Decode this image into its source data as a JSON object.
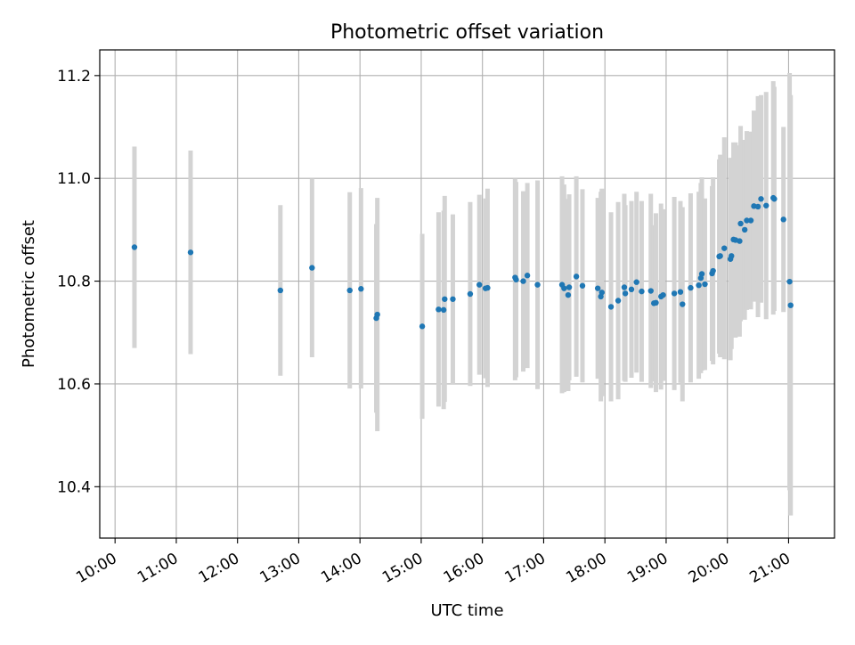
{
  "chart_data": {
    "type": "scatter",
    "title": "Photometric offset variation",
    "xlabel": "UTC time",
    "ylabel": "Photometric offset",
    "x_tick_labels": [
      "10:00",
      "11:00",
      "12:00",
      "13:00",
      "14:00",
      "15:00",
      "16:00",
      "17:00",
      "18:00",
      "19:00",
      "20:00",
      "21:00"
    ],
    "y_tick_labels": [
      "10.4",
      "10.6",
      "10.8",
      "11.0",
      "11.2"
    ],
    "xlim": [
      "09:45",
      "21:45"
    ],
    "ylim": [
      10.3,
      11.25
    ],
    "grid": true,
    "colors": {
      "marker": "#1f77b4",
      "errorbar": "#d3d3d3",
      "grid": "#b0b0b0"
    },
    "series": [
      {
        "x": [
          "10:19",
          "11:14",
          "12:42",
          "13:13",
          "13:50",
          "14:01",
          "14:16",
          "14:17",
          "15:01",
          "15:17",
          "15:22",
          "15:23",
          "15:31",
          "15:48",
          "15:57",
          "16:03",
          "16:05",
          "16:32",
          "16:33",
          "16:40",
          "16:44",
          "16:54",
          "17:18",
          "17:20",
          "17:24",
          "17:25",
          "17:32",
          "17:38",
          "17:53",
          "17:56",
          "17:57",
          "18:06",
          "18:13",
          "18:19",
          "18:20",
          "18:26",
          "18:31",
          "18:36",
          "18:45",
          "18:48",
          "18:50",
          "18:55",
          "18:57",
          "19:08",
          "19:14",
          "19:16",
          "19:24",
          "19:32",
          "19:34",
          "19:35",
          "19:38",
          "19:45",
          "19:46",
          "19:52",
          "19:53",
          "19:57",
          "20:03",
          "20:04",
          "20:06",
          "20:08",
          "20:12",
          "20:13",
          "20:17",
          "20:19",
          "20:23",
          "20:26",
          "20:30",
          "20:33",
          "20:38",
          "20:45",
          "20:46",
          "20:55",
          "21:01",
          "21:02"
        ],
        "y": [
          10.866,
          10.856,
          10.782,
          10.826,
          10.782,
          10.785,
          10.728,
          10.735,
          10.712,
          10.745,
          10.744,
          10.765,
          10.765,
          10.775,
          10.793,
          10.786,
          10.787,
          10.807,
          10.803,
          10.8,
          10.811,
          10.793,
          10.793,
          10.786,
          10.773,
          10.788,
          10.809,
          10.791,
          10.786,
          10.77,
          10.778,
          10.75,
          10.762,
          10.788,
          10.776,
          10.784,
          10.798,
          10.78,
          10.781,
          10.757,
          10.758,
          10.77,
          10.773,
          10.776,
          10.779,
          10.755,
          10.787,
          10.792,
          10.806,
          10.814,
          10.794,
          10.815,
          10.82,
          10.848,
          10.849,
          10.864,
          10.843,
          10.849,
          10.881,
          10.88,
          10.878,
          10.912,
          10.9,
          10.918,
          10.918,
          10.946,
          10.945,
          10.96,
          10.947,
          10.962,
          10.96,
          10.92,
          10.799,
          10.753
        ],
        "y_low": [
          10.67,
          10.658,
          10.616,
          10.652,
          10.591,
          10.591,
          10.544,
          10.508,
          10.532,
          10.556,
          10.551,
          10.565,
          10.6,
          10.596,
          10.618,
          10.611,
          10.594,
          10.607,
          10.613,
          10.624,
          10.631,
          10.59,
          10.582,
          10.584,
          10.586,
          10.607,
          10.614,
          10.603,
          10.61,
          10.566,
          10.576,
          10.566,
          10.57,
          10.606,
          10.604,
          10.612,
          10.622,
          10.604,
          10.592,
          10.605,
          10.584,
          10.589,
          10.606,
          10.588,
          10.602,
          10.566,
          10.603,
          10.61,
          10.621,
          10.626,
          10.627,
          10.645,
          10.638,
          10.659,
          10.652,
          10.648,
          10.646,
          10.668,
          10.692,
          10.69,
          10.692,
          10.722,
          10.725,
          10.744,
          10.745,
          10.76,
          10.73,
          10.758,
          10.726,
          10.735,
          10.742,
          10.74,
          10.393,
          10.344
        ],
        "y_high": [
          11.062,
          11.054,
          10.948,
          11.0,
          10.973,
          10.981,
          10.911,
          10.962,
          10.892,
          10.934,
          10.937,
          10.966,
          10.93,
          10.954,
          10.968,
          10.961,
          10.98,
          11.0,
          10.993,
          10.975,
          10.991,
          10.996,
          11.004,
          10.988,
          10.96,
          10.969,
          11.004,
          10.979,
          10.962,
          10.974,
          10.98,
          10.934,
          10.954,
          10.97,
          10.948,
          10.956,
          10.974,
          10.956,
          10.97,
          10.909,
          10.932,
          10.951,
          10.94,
          10.964,
          10.956,
          10.944,
          10.971,
          10.974,
          10.991,
          11.002,
          10.961,
          10.985,
          11.002,
          11.037,
          11.046,
          11.08,
          11.04,
          11.03,
          11.07,
          11.07,
          11.064,
          11.102,
          11.075,
          11.092,
          11.091,
          11.132,
          11.16,
          11.162,
          11.168,
          11.189,
          11.178,
          11.1,
          11.205,
          11.162
        ]
      }
    ]
  }
}
